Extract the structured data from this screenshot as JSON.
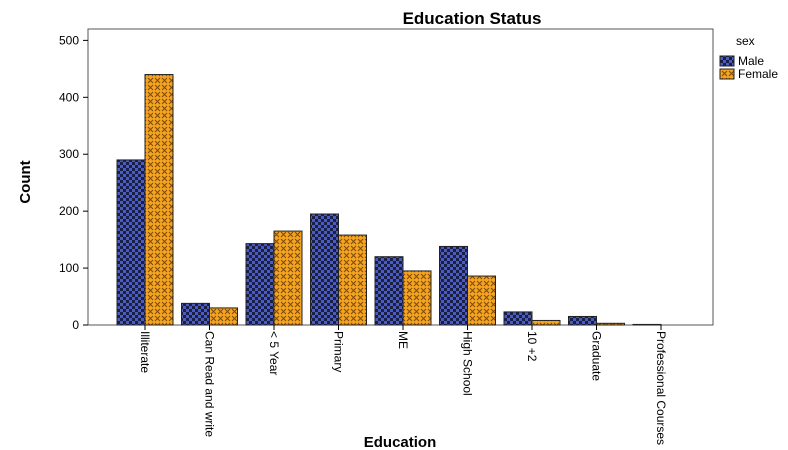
{
  "chart_data": {
    "type": "bar",
    "title": "Education Status",
    "xlabel": "Education",
    "ylabel": "Count",
    "ylim": [
      0,
      520
    ],
    "yticks": [
      0,
      100,
      200,
      300,
      400,
      500
    ],
    "categories": [
      "Illiterate",
      "Can Read and write",
      "< 5 Year",
      "Primary",
      "ME",
      "High School",
      "10 +2",
      "Graduate",
      "Professional Courses"
    ],
    "series": [
      {
        "name": "Male",
        "values": [
          290,
          38,
          143,
          195,
          120,
          138,
          23,
          15,
          1
        ],
        "color": "#3b4ba8"
      },
      {
        "name": "Female",
        "values": [
          440,
          30,
          165,
          158,
          95,
          86,
          8,
          3,
          0
        ],
        "color": "#f0a023"
      }
    ],
    "legend": {
      "title": "sex",
      "position": "right"
    },
    "grid": false
  }
}
